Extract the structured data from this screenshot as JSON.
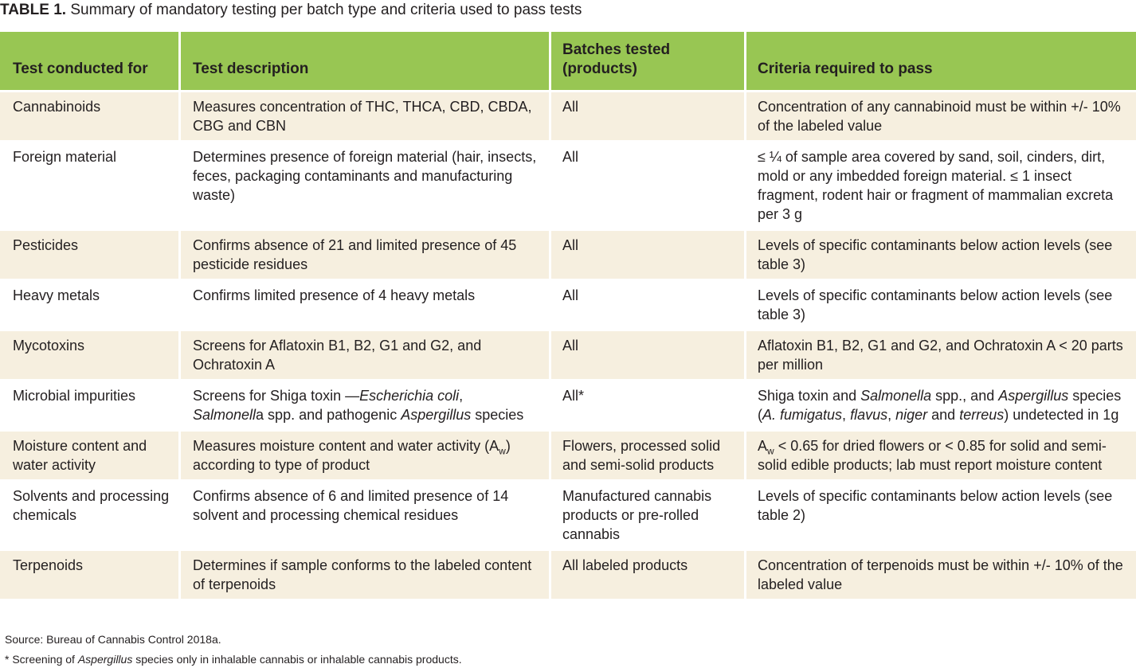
{
  "caption": {
    "label": "TABLE 1.",
    "text": "Summary of mandatory testing per batch type and criteria used to pass tests"
  },
  "headers": {
    "test_for": "Test conducted for",
    "description": "Test description",
    "batches_line1": "Batches tested",
    "batches_line2": "(products)",
    "criteria": "Criteria required to pass"
  },
  "rows": [
    {
      "test_for": "Cannabinoids",
      "description": "Measures concentration of THC, THCA, CBD, CBDA, CBG and CBN",
      "batches": "All",
      "criteria": "Concentration of any cannabinoid must be within +/- 10% of the labeled value"
    },
    {
      "test_for": "Foreign material",
      "description": "Determines presence of foreign material (hair, insects, feces, packaging contaminants and manufacturing waste)",
      "batches": "All",
      "criteria": "≤ ¼ of sample area covered by sand, soil, cinders, dirt, mold or any imbedded foreign material. ≤ 1 insect fragment, rodent hair or fragment of mammalian excreta per 3 g"
    },
    {
      "test_for": "Pesticides",
      "description": "Confirms absence of 21 and limited presence of 45 pesticide residues",
      "batches": "All",
      "criteria": "Levels of specific contaminants below action levels (see table 3)"
    },
    {
      "test_for": "Heavy metals",
      "description": "Confirms limited presence of 4 heavy metals",
      "batches": "All",
      "criteria": "Levels of specific contaminants below action levels (see table 3)"
    },
    {
      "test_for": "Mycotoxins",
      "description": "Screens for Aflatoxin B1, B2, G1 and G2, and Ochratoxin A",
      "batches": "All",
      "criteria": "Aflatoxin B1, B2, G1 and G2, and Ochratoxin A < 20 parts per million"
    },
    {
      "test_for": "Microbial impurities",
      "description_parts": [
        "Screens for Shiga toxin —",
        "Escherichia coli",
        ", ",
        "Salmonell",
        "a spp. and pathogenic ",
        "Aspergillus",
        " species"
      ],
      "batches": "All*",
      "criteria_parts": [
        "Shiga toxin and ",
        "Salmonella",
        " spp., and ",
        "Aspergillus",
        " species (",
        "A. fumigatus",
        ", ",
        "flavus",
        ", ",
        "niger",
        " and ",
        "terreus",
        ") undetected in 1g"
      ]
    },
    {
      "test_for": "Moisture content and water activity",
      "description_parts": [
        "Measures moisture content and water activity (A",
        "w",
        ") according to type of product"
      ],
      "batches": "Flowers, processed solid and semi-solid products",
      "criteria_parts": [
        "A",
        "w",
        " < 0.65 for dried flowers or < 0.85 for solid and semi-solid edible products; lab must report moisture content"
      ]
    },
    {
      "test_for": "Solvents and processing chemicals",
      "description": "Confirms absence of 6 and limited presence of 14 solvent and processing chemical residues",
      "batches": "Manufactured cannabis products or pre-rolled cannabis",
      "criteria": "Levels of specific contaminants below action levels (see table 2)"
    },
    {
      "test_for": "Terpenoids",
      "description": "Determines if sample conforms to the labeled content of terpenoids",
      "batches": "All labeled products",
      "criteria": "Concentration of terpenoids must be within +/- 10% of the labeled value"
    }
  ],
  "source": "Source: Bureau of Cannabis Control 2018a.",
  "footnote_parts": [
    "* Screening of ",
    "Aspergillus",
    " species only in inhalable cannabis or inhalable cannabis products."
  ],
  "colors": {
    "header": "#98c653",
    "band": "#f6efdf",
    "text": "#231f20"
  }
}
